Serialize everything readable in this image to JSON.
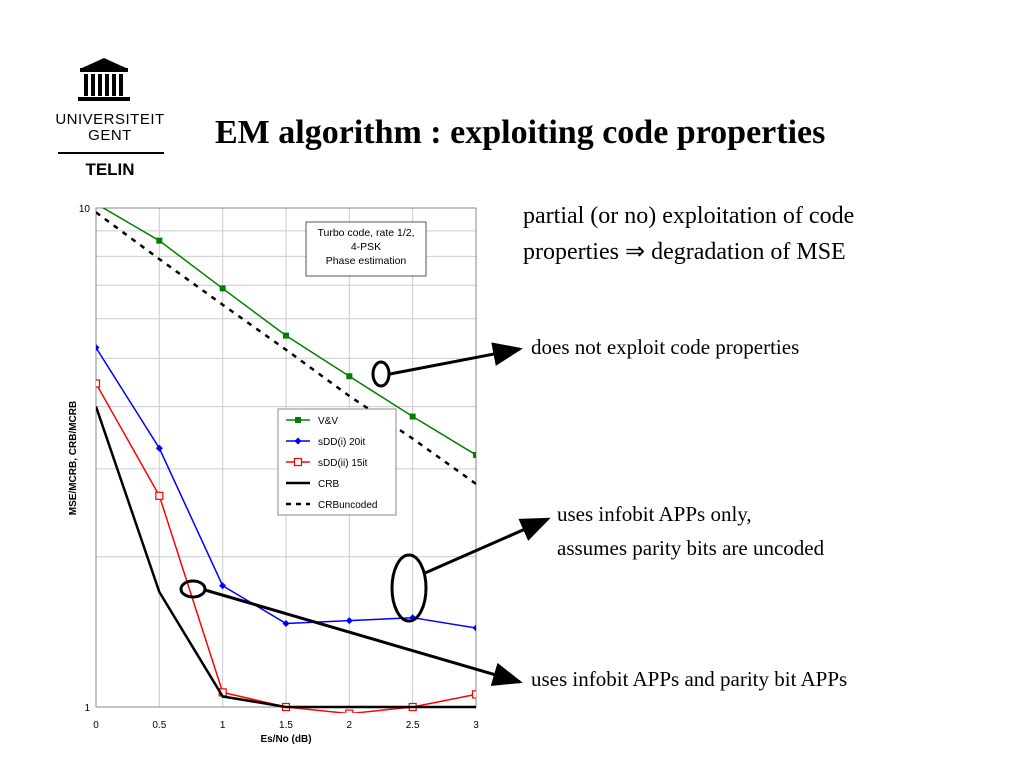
{
  "logo": {
    "line1": "UNIVERSITEIT",
    "line2": "GENT",
    "department": "TELIN"
  },
  "title": "EM algorithm : exploiting code properties",
  "bullet": {
    "line1": "partial (or no) exploitation of code",
    "line2": "properties  ⇒ degradation of MSE"
  },
  "annotations": {
    "a1": "does not exploit code properties",
    "a2_line1": "uses infobit APPs only,",
    "a2_line2": "assumes parity bits are uncoded",
    "a3": "uses infobit APPs and parity bit APPs"
  },
  "chart_data": {
    "type": "line",
    "xlabel": "Es/No (dB)",
    "ylabel": "MSE/MCRB, CRB/MCRB",
    "xlim": [
      0,
      3
    ],
    "ylim": [
      1,
      10
    ],
    "y_scale": "log",
    "x_ticks": [
      "0",
      "0.5",
      "1",
      "1.5",
      "2",
      "2.5",
      "3"
    ],
    "y_ticks": [
      "1",
      "10"
    ],
    "grid": true,
    "info_box": [
      "Turbo code, rate 1/2,",
      "4-PSK",
      "Phase estimation"
    ],
    "legend_position": "center-right",
    "series": [
      {
        "name": "V&V",
        "color": "#008000",
        "marker": "square-filled",
        "dash": "solid",
        "x": [
          0,
          0.5,
          1,
          1.5,
          2,
          2.5,
          3
        ],
        "y": [
          10.2,
          8.6,
          6.9,
          5.55,
          4.6,
          3.82,
          3.2
        ]
      },
      {
        "name": "sDD(i) 20it",
        "color": "#0000ff",
        "marker": "diamond-filled",
        "dash": "solid",
        "x": [
          0,
          0.5,
          1,
          1.5,
          2,
          2.5,
          3
        ],
        "y": [
          5.25,
          3.3,
          1.75,
          1.47,
          1.49,
          1.51,
          1.44
        ]
      },
      {
        "name": "sDD(ii) 15it",
        "color": "#ff0000",
        "marker": "square-open",
        "dash": "solid",
        "x": [
          0,
          0.5,
          1,
          1.5,
          2,
          2.5,
          3
        ],
        "y": [
          4.45,
          2.65,
          1.07,
          1.0,
          0.97,
          1.0,
          1.06
        ]
      },
      {
        "name": "CRB",
        "color": "#000000",
        "marker": "none",
        "dash": "solid",
        "x": [
          0,
          0.5,
          1,
          1.5,
          2,
          2.5,
          3
        ],
        "y": [
          4.0,
          1.7,
          1.05,
          1.0,
          1.0,
          1.0,
          1.0
        ]
      },
      {
        "name": "CRBuncoded",
        "color": "#000000",
        "marker": "none",
        "dash": "dashed",
        "x": [
          0,
          0.5,
          1,
          1.5,
          2,
          2.5,
          3
        ],
        "y": [
          9.8,
          7.9,
          6.4,
          5.2,
          4.2,
          3.45,
          2.8
        ]
      }
    ]
  }
}
